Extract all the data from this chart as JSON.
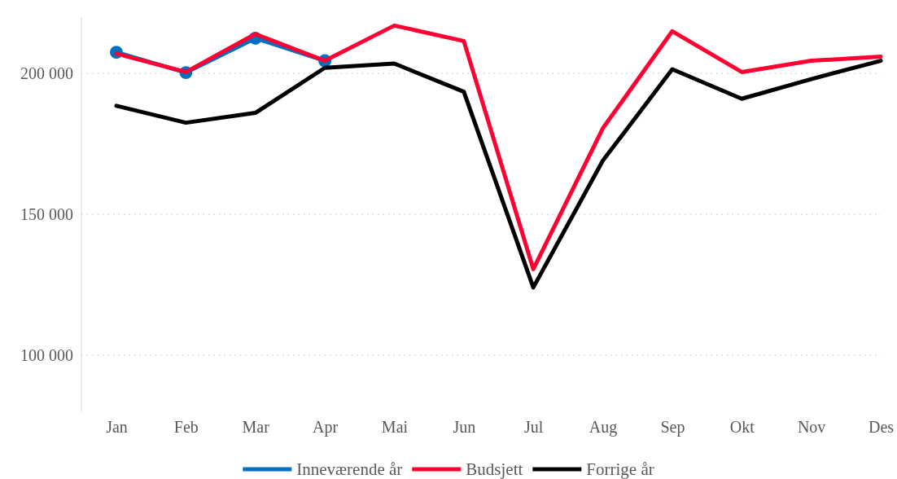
{
  "chart_data": {
    "type": "line",
    "categories": [
      "Jan",
      "Feb",
      "Mar",
      "Apr",
      "Mai",
      "Jun",
      "Jul",
      "Aug",
      "Sep",
      "Okt",
      "Nov",
      "Des"
    ],
    "series": [
      {
        "name": "Inneværende år",
        "color": "#0070c0",
        "marker": "circle",
        "values": [
          207500,
          200300,
          212500,
          204500,
          null,
          null,
          null,
          null,
          null,
          null,
          null,
          null
        ]
      },
      {
        "name": "Budsjett",
        "color": "#ff0033",
        "marker": "none",
        "values": [
          207000,
          200500,
          214000,
          204500,
          217000,
          211500,
          130500,
          180500,
          215000,
          200500,
          204500,
          206000
        ]
      },
      {
        "name": "Forrige år",
        "color": "#000000",
        "marker": "none",
        "values": [
          188500,
          182500,
          186000,
          202000,
          203500,
          193500,
          124000,
          169000,
          201500,
          191000,
          198000,
          204500
        ]
      }
    ],
    "ylim": [
      80000,
      220000
    ],
    "yticks": [
      {
        "value": 100000,
        "label": "100 000"
      },
      {
        "value": 150000,
        "label": "150 000"
      },
      {
        "value": 200000,
        "label": "200 000"
      }
    ],
    "grid": "y",
    "legend": "bottom",
    "line_style": "solid"
  }
}
